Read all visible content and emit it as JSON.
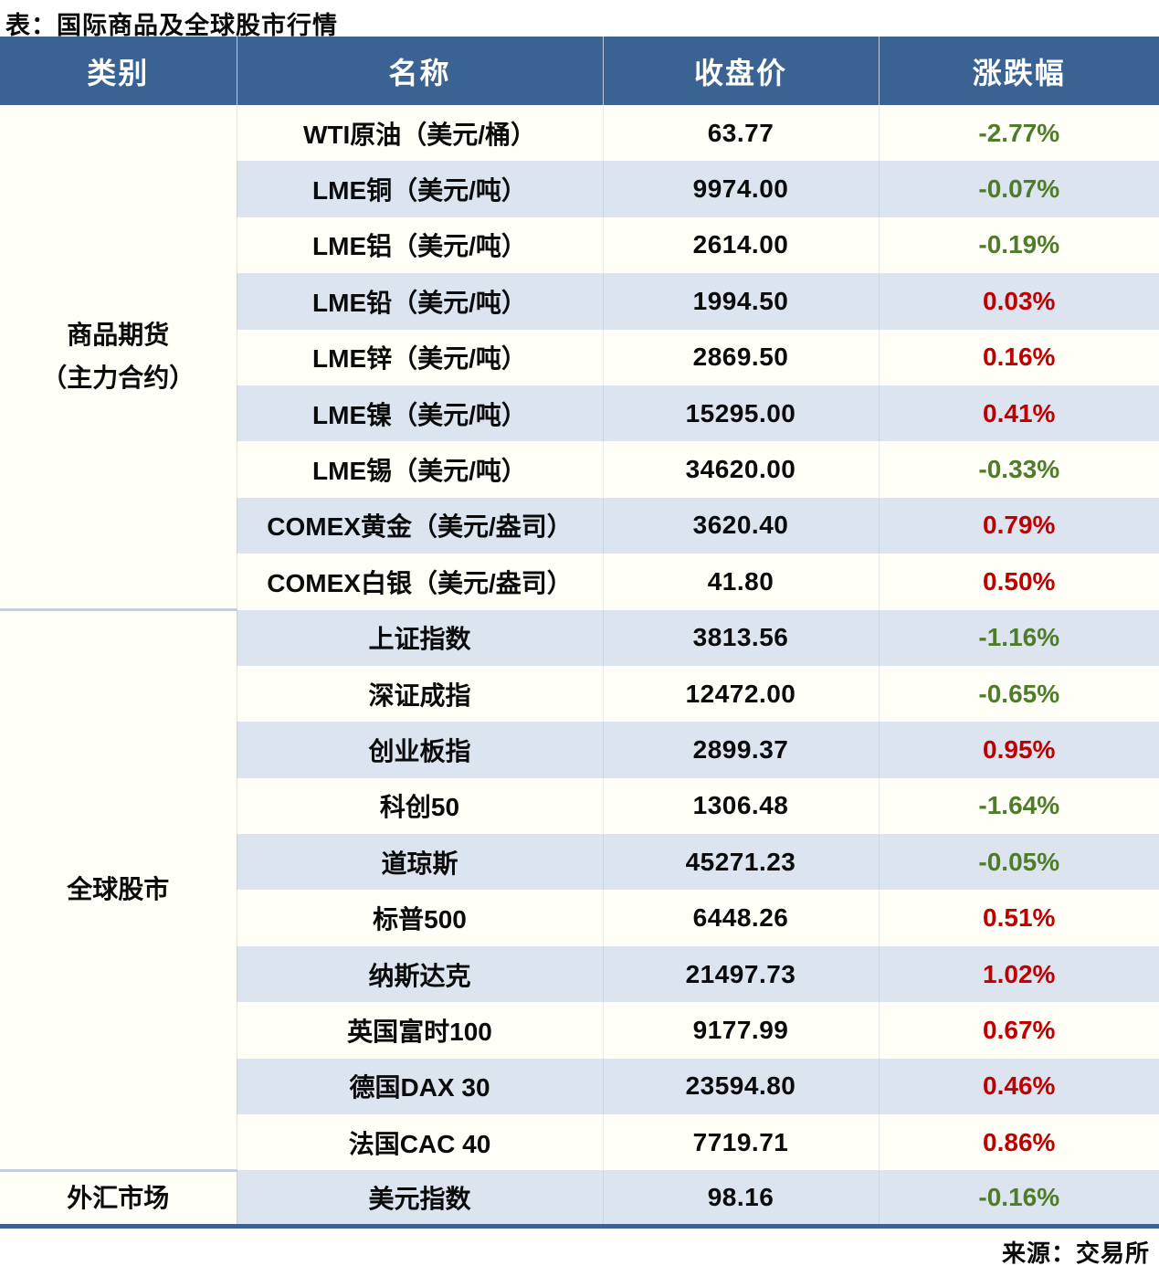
{
  "title": "表：国际商品及全球股市行情",
  "source": "来源：交易所",
  "colors": {
    "header_bg": "#3A6394",
    "stripe_blue": "#DBE4EF",
    "stripe_white": "#FFFFF8",
    "up_red": "#C00000",
    "down_green": "#4E7C2B",
    "bottom_rule": "#3A6394"
  },
  "table": {
    "headers": [
      "类别",
      "名称",
      "收盘价",
      "涨跌幅"
    ],
    "categories": [
      {
        "label": "商品期货\n（主力合约）"
      },
      {
        "label": "全球股市"
      },
      {
        "label": "外汇市场"
      }
    ],
    "rows": [
      {
        "name": "WTI原油（美元/桶）",
        "close": "63.77",
        "change": "-2.77%",
        "dir": "down"
      },
      {
        "name": "LME铜（美元/吨）",
        "close": "9974.00",
        "change": "-0.07%",
        "dir": "down"
      },
      {
        "name": "LME铝（美元/吨）",
        "close": "2614.00",
        "change": "-0.19%",
        "dir": "down"
      },
      {
        "name": "LME铅（美元/吨）",
        "close": "1994.50",
        "change": "0.03%",
        "dir": "up"
      },
      {
        "name": "LME锌（美元/吨）",
        "close": "2869.50",
        "change": "0.16%",
        "dir": "up"
      },
      {
        "name": "LME镍（美元/吨）",
        "close": "15295.00",
        "change": "0.41%",
        "dir": "up"
      },
      {
        "name": "LME锡（美元/吨）",
        "close": "34620.00",
        "change": "-0.33%",
        "dir": "down"
      },
      {
        "name": "COMEX黄金（美元/盎司）",
        "close": "3620.40",
        "change": "0.79%",
        "dir": "up"
      },
      {
        "name": "COMEX白银（美元/盎司）",
        "close": "41.80",
        "change": "0.50%",
        "dir": "up"
      },
      {
        "name": "上证指数",
        "close": "3813.56",
        "change": "-1.16%",
        "dir": "down"
      },
      {
        "name": "深证成指",
        "close": "12472.00",
        "change": "-0.65%",
        "dir": "down"
      },
      {
        "name": "创业板指",
        "close": "2899.37",
        "change": "0.95%",
        "dir": "up"
      },
      {
        "name": "科创50",
        "close": "1306.48",
        "change": "-1.64%",
        "dir": "down"
      },
      {
        "name": "道琼斯",
        "close": "45271.23",
        "change": "-0.05%",
        "dir": "down"
      },
      {
        "name": "标普500",
        "close": "6448.26",
        "change": "0.51%",
        "dir": "up"
      },
      {
        "name": "纳斯达克",
        "close": "21497.73",
        "change": "1.02%",
        "dir": "up"
      },
      {
        "name": "英国富时100",
        "close": "9177.99",
        "change": "0.67%",
        "dir": "up"
      },
      {
        "name": "德国DAX 30",
        "close": "23594.80",
        "change": "0.46%",
        "dir": "up"
      },
      {
        "name": "法国CAC 40",
        "close": "7719.71",
        "change": "0.86%",
        "dir": "up"
      },
      {
        "name": "美元指数",
        "close": "98.16",
        "change": "-0.16%",
        "dir": "down"
      }
    ]
  },
  "chart_data": {
    "type": "table",
    "title": "表：国际商品及全球股市行情",
    "columns": [
      "类别",
      "名称",
      "收盘价",
      "涨跌幅"
    ],
    "rows": [
      [
        "商品期货（主力合约）",
        "WTI原油（美元/桶）",
        63.77,
        "-2.77%"
      ],
      [
        "商品期货（主力合约）",
        "LME铜（美元/吨）",
        9974.0,
        "-0.07%"
      ],
      [
        "商品期货（主力合约）",
        "LME铝（美元/吨）",
        2614.0,
        "-0.19%"
      ],
      [
        "商品期货（主力合约）",
        "LME铅（美元/吨）",
        1994.5,
        "0.03%"
      ],
      [
        "商品期货（主力合约）",
        "LME锌（美元/吨）",
        2869.5,
        "0.16%"
      ],
      [
        "商品期货（主力合约）",
        "LME镍（美元/吨）",
        15295.0,
        "0.41%"
      ],
      [
        "商品期货（主力合约）",
        "LME锡（美元/吨）",
        34620.0,
        "-0.33%"
      ],
      [
        "商品期货（主力合约）",
        "COMEX黄金（美元/盎司）",
        3620.4,
        "0.79%"
      ],
      [
        "商品期货（主力合约）",
        "COMEX白银（美元/盎司）",
        41.8,
        "0.50%"
      ],
      [
        "全球股市",
        "上证指数",
        3813.56,
        "-1.16%"
      ],
      [
        "全球股市",
        "深证成指",
        12472.0,
        "-0.65%"
      ],
      [
        "全球股市",
        "创业板指",
        2899.37,
        "0.95%"
      ],
      [
        "全球股市",
        "科创50",
        1306.48,
        "-1.64%"
      ],
      [
        "全球股市",
        "道琼斯",
        45271.23,
        "-0.05%"
      ],
      [
        "全球股市",
        "标普500",
        6448.26,
        "0.51%"
      ],
      [
        "全球股市",
        "纳斯达克",
        21497.73,
        "1.02%"
      ],
      [
        "全球股市",
        "英国富时100",
        9177.99,
        "0.67%"
      ],
      [
        "全球股市",
        "德国DAX 30",
        23594.8,
        "0.46%"
      ],
      [
        "全球股市",
        "法国CAC 40",
        7719.71,
        "0.86%"
      ],
      [
        "外汇市场",
        "美元指数",
        98.16,
        "-0.16%"
      ]
    ],
    "notes": "positive change = red, negative change = green; 来源：交易所"
  }
}
